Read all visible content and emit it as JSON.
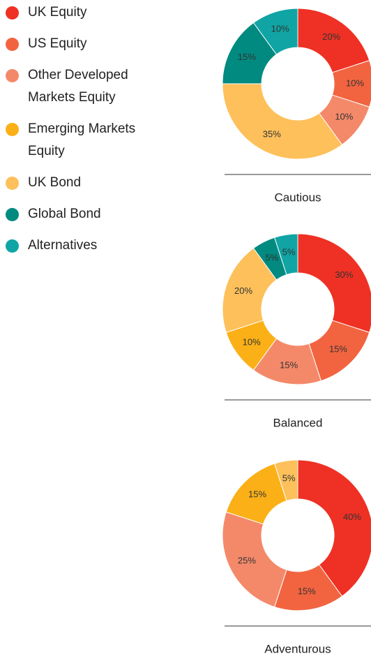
{
  "legend": {
    "categories": [
      "UK Equity",
      "US Equity",
      "Other Developed Markets Equity",
      "Emerging Markets Equity",
      "UK Bond",
      "Global Bond",
      "Alternatives"
    ],
    "colors": [
      "#ee3124",
      "#f26440",
      "#f4896a",
      "#fbb017",
      "#fdc05a",
      "#008a80",
      "#10a4a4"
    ]
  },
  "chart_data": [
    {
      "type": "donut",
      "title": "Cautious",
      "values": [
        20,
        10,
        10,
        null,
        35,
        15,
        10
      ],
      "value_labels": [
        "20%",
        "10%",
        "10%",
        null,
        "35%",
        "15%",
        "10%"
      ]
    },
    {
      "type": "donut",
      "title": "Balanced",
      "values": [
        30,
        15,
        15,
        10,
        20,
        5,
        5
      ],
      "value_labels": [
        "30%",
        "15%",
        "15%",
        "10%",
        "20%",
        "5%",
        "5%"
      ]
    },
    {
      "type": "donut",
      "title": "Adventurous",
      "values": [
        40,
        15,
        25,
        15,
        5,
        null,
        null
      ],
      "value_labels": [
        "40%",
        "15%",
        "25%",
        "15%",
        "5%",
        null,
        null
      ]
    }
  ]
}
